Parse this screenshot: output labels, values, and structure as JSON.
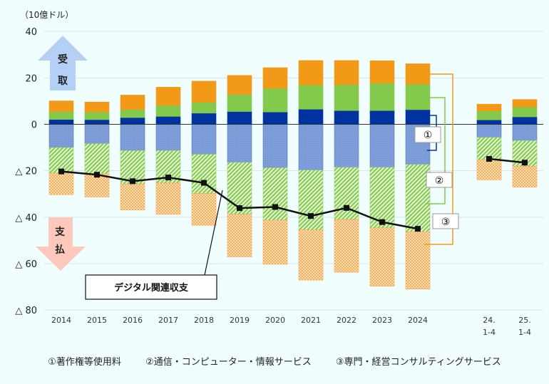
{
  "chart_data": {
    "type": "bar",
    "stacked": true,
    "unit_label": "（10億ドル）",
    "categories": [
      [
        "2014"
      ],
      [
        "2015"
      ],
      [
        "2016"
      ],
      [
        "2017"
      ],
      [
        "2018"
      ],
      [
        "2019"
      ],
      [
        "2020"
      ],
      [
        "2021"
      ],
      [
        "2022"
      ],
      [
        "2023"
      ],
      [
        "2024"
      ],
      [
        "24.",
        "1-4"
      ],
      [
        "25.",
        "1-4"
      ]
    ],
    "ylim": [
      -80,
      40
    ],
    "yticks": [
      {
        "v": 40,
        "label": "40"
      },
      {
        "v": 20,
        "label": "20"
      },
      {
        "v": 0,
        "label": "0"
      },
      {
        "v": -20,
        "label": "△ 20"
      },
      {
        "v": -40,
        "label": "△ 40"
      },
      {
        "v": -60,
        "label": "△ 60"
      },
      {
        "v": -80,
        "label": "△ 80"
      }
    ],
    "grid": true,
    "receipt_arrow_label": [
      "受",
      "取"
    ],
    "payment_arrow_label": [
      "支",
      "払"
    ],
    "series": [
      {
        "key": "①",
        "kind": "receipt",
        "color": "#0033a0",
        "values": [
          2.1,
          2.0,
          2.9,
          3.4,
          4.8,
          5.5,
          5.3,
          6.5,
          5.9,
          5.9,
          6.3,
          1.9,
          3.2
        ]
      },
      {
        "key": "②",
        "kind": "receipt",
        "color": "#82c94c",
        "values": [
          3.4,
          3.3,
          3.5,
          4.8,
          4.7,
          7.4,
          10.2,
          10.5,
          11.2,
          11.8,
          11.0,
          3.8,
          4.3
        ]
      },
      {
        "key": "③",
        "kind": "receipt",
        "color": "#f29a18",
        "values": [
          4.6,
          4.3,
          6.2,
          7.8,
          9.1,
          8.2,
          8.9,
          10.5,
          10.4,
          9.7,
          8.8,
          3.0,
          3.2
        ]
      },
      {
        "key": "①",
        "kind": "payment",
        "color": "#7e9ed9",
        "values": [
          -10.0,
          -8.3,
          -11.3,
          -11.3,
          -12.9,
          -16.4,
          -18.7,
          -19.7,
          -18.5,
          -18.5,
          -17.3,
          -5.6,
          -7.0
        ]
      },
      {
        "key": "②",
        "kind": "payment",
        "color": "#82c94c",
        "values": [
          -11.0,
          -13.0,
          -14.4,
          -14.0,
          -16.9,
          -22.3,
          -22.6,
          -25.8,
          -22.5,
          -26.1,
          -29.0,
          -9.6,
          -11.1
        ]
      },
      {
        "key": "③",
        "kind": "payment",
        "color": "#f5a84a",
        "values": [
          -9.3,
          -10.0,
          -11.2,
          -13.5,
          -13.7,
          -18.4,
          -19.0,
          -21.6,
          -22.7,
          -25.1,
          -24.7,
          -8.7,
          -9.0
        ]
      }
    ],
    "line": {
      "name": "デジタル関連収支",
      "color": "#111111",
      "values": [
        -20.3,
        -21.7,
        -24.5,
        -22.9,
        -25.2,
        -36.1,
        -35.6,
        -39.5,
        -36.0,
        -42.1,
        -45.0,
        -14.9,
        -16.5
      ]
    },
    "bracket_labels": [
      "①",
      "②",
      "③"
    ],
    "legend": [
      "①著作権等使用料",
      "②通信・コンピューター・情報サービス",
      "③専門・経営コンサルティングサービス"
    ]
  }
}
